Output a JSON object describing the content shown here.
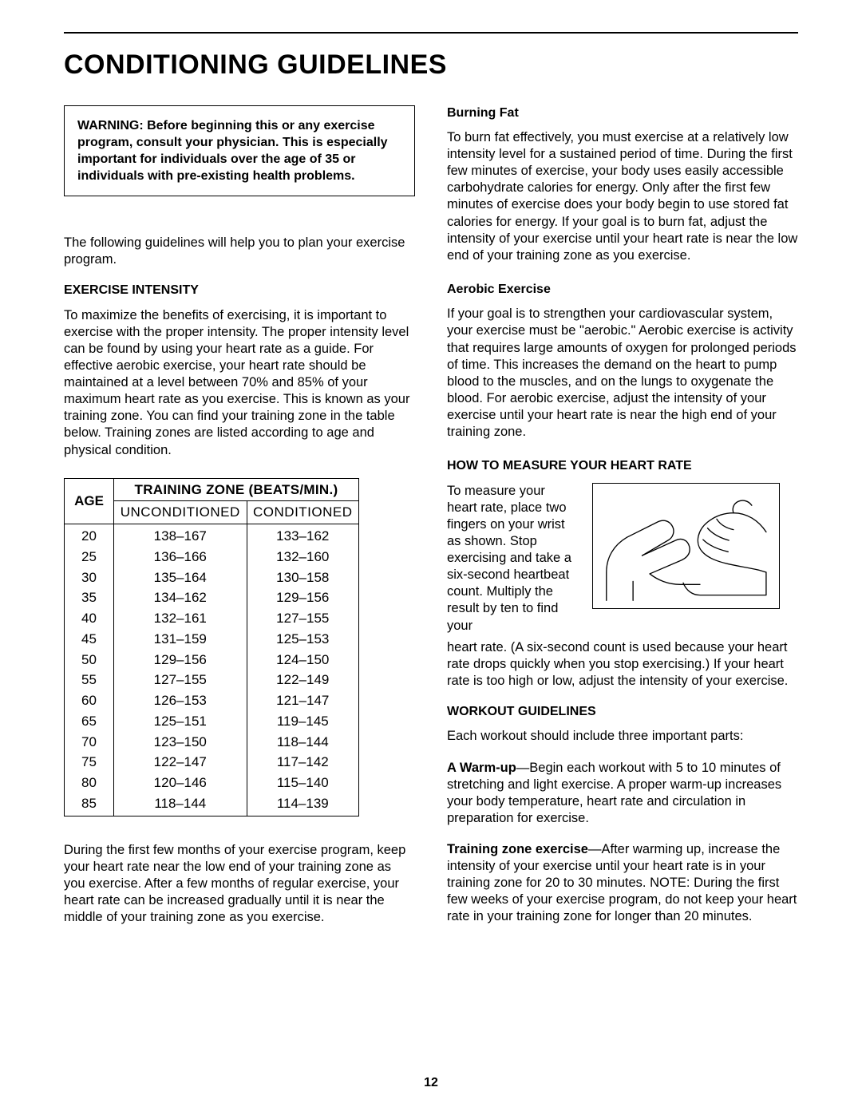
{
  "title": "CONDITIONING GUIDELINES",
  "page_number": "12",
  "warning": "WARNING: Before beginning this or any exercise program, consult your physician. This is especially important for individuals over the age of 35 or individuals with pre-existing health problems.",
  "intro": "The following guidelines will help you to plan your exercise program.",
  "left": {
    "h_intensity": "EXERCISE INTENSITY",
    "p_intensity": "To maximize the benefits of exercising, it is important to exercise with the proper intensity. The proper intensity level can be found by using your heart rate as a guide. For effective aerobic exercise, your heart rate should be maintained at a level between 70% and 85% of your maximum heart rate as you exercise. This is known as your training zone. You can find your training zone in the table below. Training zones are listed according to age and physical condition.",
    "table": {
      "zone_header": "TRAINING ZONE (BEATS/MIN.)",
      "age_header": "AGE",
      "col_uncond": "UNCONDITIONED",
      "col_cond": "CONDITIONED",
      "rows": [
        {
          "age": "20",
          "u": "138–167",
          "c": "133–162"
        },
        {
          "age": "25",
          "u": "136–166",
          "c": "132–160"
        },
        {
          "age": "30",
          "u": "135–164",
          "c": "130–158"
        },
        {
          "age": "35",
          "u": "134–162",
          "c": "129–156"
        },
        {
          "age": "40",
          "u": "132–161",
          "c": "127–155"
        },
        {
          "age": "45",
          "u": "131–159",
          "c": "125–153"
        },
        {
          "age": "50",
          "u": "129–156",
          "c": "124–150"
        },
        {
          "age": "55",
          "u": "127–155",
          "c": "122–149"
        },
        {
          "age": "60",
          "u": "126–153",
          "c": "121–147"
        },
        {
          "age": "65",
          "u": "125–151",
          "c": "119–145"
        },
        {
          "age": "70",
          "u": "123–150",
          "c": "118–144"
        },
        {
          "age": "75",
          "u": "122–147",
          "c": "117–142"
        },
        {
          "age": "80",
          "u": "120–146",
          "c": "115–140"
        },
        {
          "age": "85",
          "u": "118–144",
          "c": "114–139"
        }
      ]
    },
    "p_after_table": "During the first few months of your exercise program, keep your heart rate near the low end of your training zone as you exercise. After a few months of regular exercise, your heart rate can be increased gradually until it is near the middle of your training zone as you exercise."
  },
  "right": {
    "h_burn": "Burning Fat",
    "p_burn": "To burn fat effectively, you must exercise at a relatively low intensity level for a sustained period of time. During the first few minutes of exercise, your body uses easily accessible carbohydrate calories for energy. Only after the first few minutes of exercise does your body begin to use stored fat calories for energy. If your goal is to burn fat, adjust the intensity of your exercise until your heart rate is near the low end of your training zone as you exercise.",
    "h_aero": "Aerobic Exercise",
    "p_aero": "If your goal is to strengthen your cardiovascular system, your exercise must be \"aerobic.\" Aerobic exercise is activity that requires large amounts of oxygen for prolonged periods of time. This increases the demand on the heart to pump blood to the muscles, and on the lungs to oxygenate the blood. For aerobic exercise, adjust the intensity of your exercise until your heart rate is near the high end of your training zone.",
    "h_measure": "HOW TO MEASURE YOUR HEART RATE",
    "p_measure_wrap": "To measure your heart rate, place two fingers on your wrist as shown. Stop exercising and take a six-second heartbeat count. Multiply the result by ten to find your",
    "p_measure_cont": "heart rate. (A six-second count is used because your heart rate drops quickly when you stop exercising.) If your heart rate is too high or low, adjust the intensity of your exercise.",
    "h_workout": "WORKOUT GUIDELINES",
    "p_workout_intro": "Each workout should include three important parts:",
    "warmup_label": "A Warm-up",
    "warmup_text": "—Begin each workout with 5 to 10 minutes of stretching and light exercise. A proper warm-up increases your body temperature, heart rate and circulation in preparation for exercise.",
    "tze_label": "Training zone exercise",
    "tze_text": "—After warming up, increase the intensity of your exercise until your heart rate is in your training zone for 20 to 30 minutes. NOTE: During the first few weeks of your exercise program, do not keep your heart rate in your training zone for longer than 20 minutes."
  }
}
